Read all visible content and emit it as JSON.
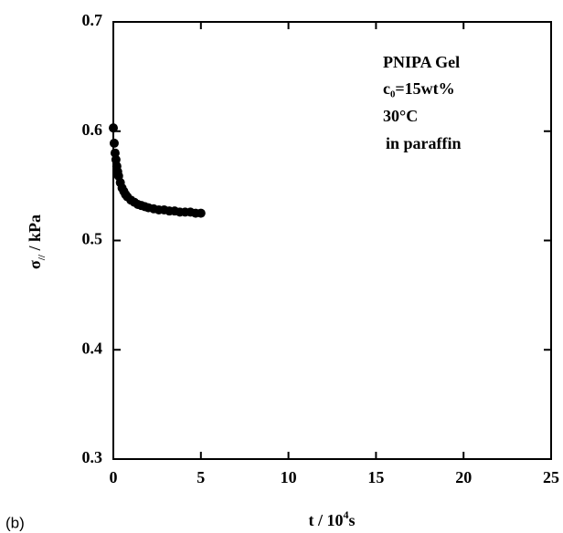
{
  "chart_data": {
    "type": "scatter",
    "annotations": [
      "PNIPA Gel",
      "c₀=15wt%",
      "30°C",
      "in paraffin"
    ],
    "x_label": [
      "t / 10",
      "4",
      "s"
    ],
    "y_label": [
      "σ",
      "//",
      " / kPa"
    ],
    "panel_label": "(b)",
    "color": "#000000",
    "x": [
      0,
      0.05,
      0.1,
      0.15,
      0.2,
      0.25,
      0.3,
      0.4,
      0.5,
      0.6,
      0.7,
      0.8,
      1.0,
      1.2,
      1.4,
      1.6,
      1.8,
      2.0,
      2.3,
      2.6,
      2.9,
      3.2,
      3.5,
      3.8,
      4.1,
      4.4,
      4.7,
      5.0
    ],
    "values": [
      0.603,
      0.589,
      0.58,
      0.574,
      0.568,
      0.563,
      0.559,
      0.553,
      0.548,
      0.545,
      0.542,
      0.54,
      0.537,
      0.535,
      0.533,
      0.532,
      0.531,
      0.53,
      0.529,
      0.528,
      0.528,
      0.527,
      0.527,
      0.526,
      0.526,
      0.526,
      0.525,
      0.525
    ],
    "xlim": [
      0,
      25
    ],
    "xticks": [
      0,
      5,
      10,
      15,
      20,
      25
    ],
    "ylim": [
      0.3,
      0.7
    ],
    "yticks": [
      0.3,
      0.4,
      0.5,
      0.6,
      0.7
    ]
  }
}
